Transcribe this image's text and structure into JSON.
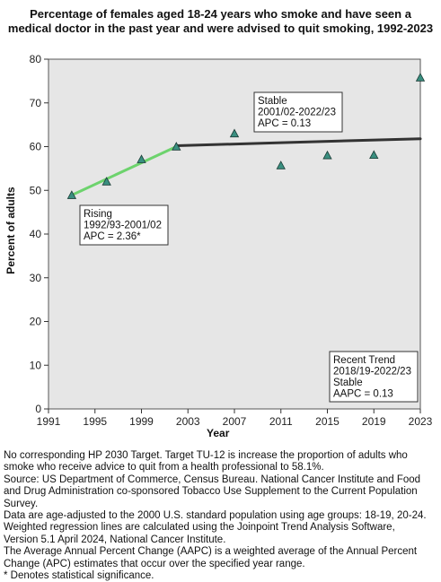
{
  "chart_data": {
    "type": "scatter",
    "title_lines": [
      "Percentage of females aged 18-24 years who smoke and have seen a",
      "medical doctor in the past year and were advised to quit smoking, 1992-2023"
    ],
    "xlabel": "Year",
    "ylabel": "Percent of adults",
    "xlim": [
      1991,
      2023
    ],
    "ylim": [
      0,
      80
    ],
    "x_ticks": [
      "1991",
      "1995",
      "1999",
      "2003",
      "2007",
      "2011",
      "2015",
      "2019",
      "2023"
    ],
    "y_ticks": [
      "0",
      "10",
      "20",
      "30",
      "40",
      "50",
      "60",
      "70",
      "80"
    ],
    "grid": false,
    "points": [
      {
        "x": 1993,
        "y": 48.9
      },
      {
        "x": 1996,
        "y": 52.0
      },
      {
        "x": 1999,
        "y": 57.1
      },
      {
        "x": 2002,
        "y": 60.0
      },
      {
        "x": 2007,
        "y": 63.0
      },
      {
        "x": 2011,
        "y": 55.7
      },
      {
        "x": 2015,
        "y": 58.0
      },
      {
        "x": 2019,
        "y": 58.1
      },
      {
        "x": 2023,
        "y": 75.8
      }
    ],
    "trend_segments": [
      {
        "x": [
          1993,
          2002
        ],
        "y": [
          48.9,
          60.0
        ],
        "color": "#6dd36d"
      },
      {
        "x": [
          2002,
          2011,
          2023
        ],
        "y": [
          60.2,
          60.9,
          61.8
        ],
        "color": "#333333"
      }
    ],
    "annotations": [
      {
        "lines": [
          "Rising",
          "1992/93-2001/02",
          "APC =  2.36*"
        ]
      },
      {
        "lines": [
          "Stable",
          "2001/02-2022/23",
          "APC =  0.13"
        ]
      },
      {
        "lines": [
          "Recent Trend",
          "2018/19-2022/23",
          "Stable",
          "AAPC =  0.13"
        ]
      }
    ],
    "point_color": "#3a8f80"
  },
  "notes": [
    "No corresponding HP 2030 Target. Target TU-12 is increase the proportion of adults who",
    "smoke who receive advice to quit from a health professional to 58.1%.",
    "Source: US Department of Commerce, Census Bureau. National Cancer Institute and Food",
    "and Drug Administration co-sponsored Tobacco Use Supplement to the Current Population",
    "Survey.",
    "Data are age-adjusted to the 2000 U.S. standard population using age groups: 18-19, 20-24.",
    "Weighted regression lines are calculated using the Joinpoint Trend Analysis Software,",
    "Version 5.1 April 2024, National Cancer Institute.",
    "The Average Annual Percent Change (AAPC) is a weighted average of the Annual Percent",
    "Change (APC) estimates that occur over the specified year range.",
    "* Denotes statistical significance."
  ]
}
